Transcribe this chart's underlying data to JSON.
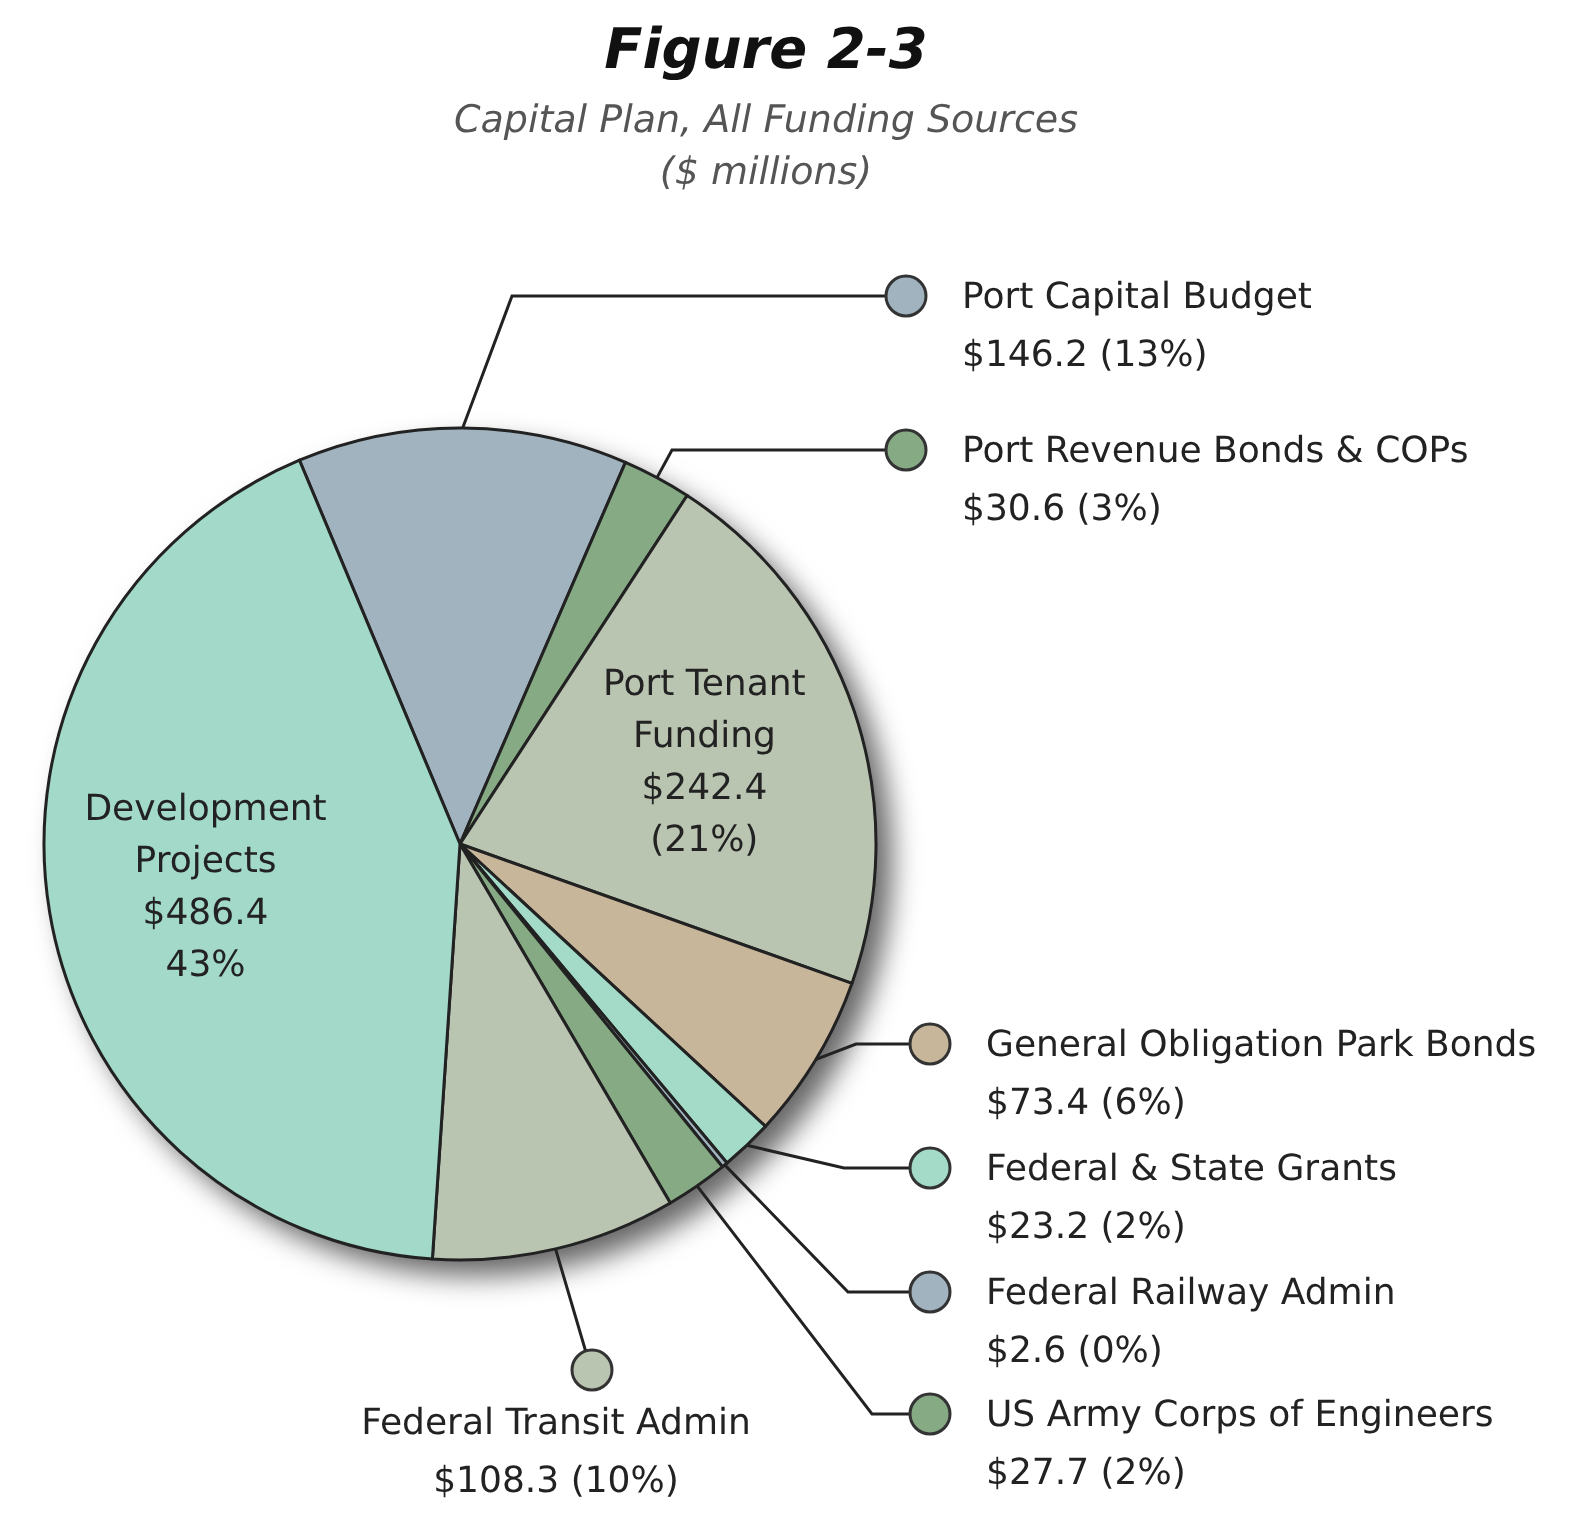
{
  "chart_data": {
    "type": "pie",
    "legend": "right",
    "title": "Figure 2-3",
    "subtitle": "Capital Plan, All Funding Sources\n($ millions)",
    "categories": [
      "Port Capital Budget",
      "Port Revenue Bonds & COPs",
      "Port Tenant Funding",
      "General Obligation Park Bonds",
      "Federal & State Grants",
      "Federal Railway Admin",
      "US Army Corps of Engineers",
      "Federal Transit Admin",
      "Development Projects"
    ],
    "values": [
      146.2,
      30.6,
      242.4,
      73.4,
      23.2,
      2.6,
      27.7,
      108.3,
      486.4
    ],
    "colors": [
      "#a0b3bf",
      "#86aa84",
      "#b9c4b1",
      "#c8b69b",
      "#a3dbc8",
      "#a0b3bf",
      "#86aa84",
      "#b9c4b1",
      "#a3d9c9"
    ],
    "value_labels": [
      "$146.2 (13%)",
      "$30.6 (3%)",
      "$242.4\n(21%)",
      "$73.4 (6%)",
      "$23.2 (2%)",
      "$2.6 (0%)",
      "$27.7 (2%)",
      "$108.3 (10%)",
      "$486.4\n43%"
    ]
  }
}
